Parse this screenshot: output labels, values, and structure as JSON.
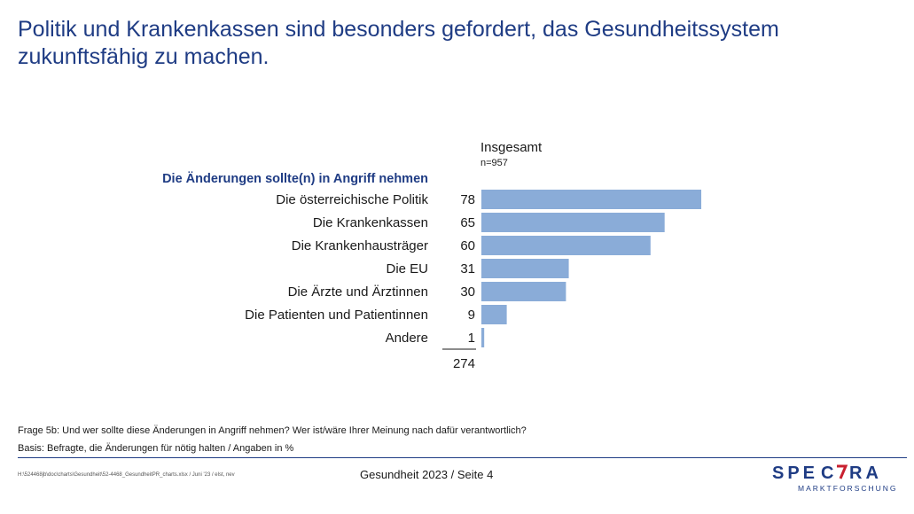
{
  "title": "Politik und Krankenkassen sind besonders gefordert, das Gesundheitssystem zukunftsfähig zu machen.",
  "column_header": "Insgesamt",
  "sample_size": "n=957",
  "section_label": "Die Änderungen sollte(n) in Angriff nehmen",
  "chart_data": {
    "type": "bar",
    "orientation": "horizontal",
    "categories": [
      "Die österreichische Politik",
      "Die Krankenkassen",
      "Die Krankenhausträger",
      "Die EU",
      "Die Ärzte und Ärztinnen",
      "Die Patienten und Patientinnen",
      "Andere"
    ],
    "series": [
      {
        "values": [
          78,
          65,
          60,
          31,
          30,
          9,
          1
        ]
      }
    ],
    "total": "274",
    "xlim": [
      0,
      100
    ],
    "bar_color": "#8aacd8",
    "grid": false
  },
  "footnotes": {
    "question": "Frage 5b: Und wer sollte diese Änderungen in Angriff nehmen? Wer ist/wäre Ihrer Meinung nach dafür verantwortlich?",
    "basis": "Basis: Befragte, die Änderungen für nötig halten / Angaben in %"
  },
  "file_path": "H:\\524468jb\\doc\\charts\\Gesundheit\\52-4468_GesundheitPR_charts.xlsx / Juni '23 / elst, nev",
  "page_footer": "Gesundheit 2023  /  Seite 4",
  "logo": {
    "text": "SPECTRA",
    "subtext": "MARKTFORSCHUNG",
    "color": "#1f3c84",
    "accent": "#c8202f"
  }
}
